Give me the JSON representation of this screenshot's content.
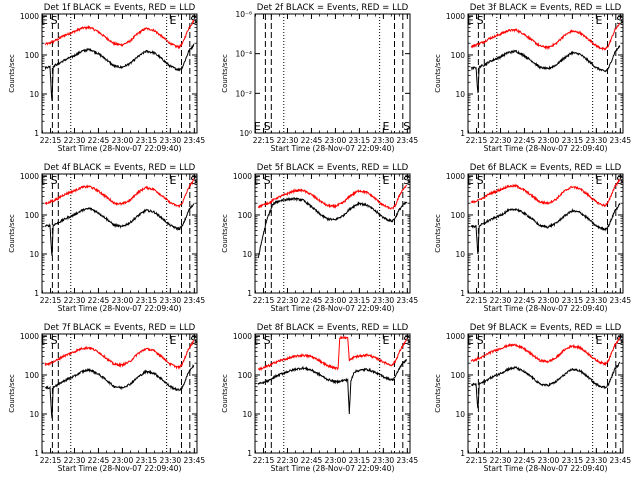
{
  "colors": {
    "events": "#000000",
    "lld": "#ff0000",
    "axis": "#000000",
    "background": "#ffffff"
  },
  "charts_common": {
    "ylabel": "Counts/sec",
    "xlabel": "Start Time (28-Nov-07 22:09:40)",
    "xticks": [
      "22:15",
      "22:30",
      "22:45",
      "23:00",
      "23:15",
      "23:30",
      "23:45"
    ],
    "yticks_log": [
      "1",
      "10",
      "100",
      "1000"
    ],
    "yticks_flat": [
      "10⁰",
      "10⁻²",
      "10⁻⁴",
      "10⁻⁶"
    ],
    "xlim_minutes": [
      0,
      97
    ],
    "ylim_log10": [
      0,
      3.05
    ],
    "ylim_flat": [
      0,
      1
    ],
    "marker_lines": [
      {
        "minute": 6.5,
        "style": "dashed"
      },
      {
        "minute": 10.2,
        "style": "dashed"
      },
      {
        "minute": 18.0,
        "style": "dotted"
      },
      {
        "minute": 78.0,
        "style": "dotted"
      },
      {
        "minute": 87.3,
        "style": "dashed"
      },
      {
        "minute": 92.5,
        "style": "dashed"
      }
    ]
  },
  "chart_data": [
    {
      "type": "line",
      "title": "Det 1f BLACK = Events, RED = LLD",
      "scale": "log",
      "x": [
        2,
        5,
        6.2,
        7,
        8,
        10,
        11,
        13,
        16,
        20,
        25,
        30,
        35,
        40,
        45,
        50,
        55,
        60,
        65,
        70,
        75,
        80,
        84,
        86,
        88,
        90,
        92,
        94,
        95
      ],
      "series": [
        {
          "name": "LLD",
          "values": [
            190,
            200,
            225,
            215,
            235,
            250,
            270,
            305,
            340,
            395,
            490,
            510,
            400,
            280,
            195,
            180,
            225,
            360,
            480,
            430,
            300,
            200,
            165,
            160,
            200,
            320,
            500,
            650,
            780
          ]
        },
        {
          "name": "Events",
          "values": [
            48,
            50,
            6,
            50,
            55,
            58,
            62,
            70,
            80,
            95,
            125,
            140,
            110,
            78,
            52,
            48,
            60,
            90,
            125,
            115,
            80,
            52,
            44,
            42,
            50,
            80,
            130,
            160,
            185
          ]
        }
      ],
      "edge_labels": [
        {
          "text": "E",
          "minute": 1.5
        },
        {
          "text": "S",
          "minute": 7.6
        },
        {
          "text": "E",
          "minute": 82
        },
        {
          "text": "S",
          "minute": 95
        }
      ]
    },
    {
      "type": "line",
      "title": "Det 2f BLACK = Events, RED = LLD",
      "scale": "flat",
      "x": [],
      "series": [],
      "edge_labels": [
        {
          "text": "E",
          "minute": 1.5
        },
        {
          "text": "S",
          "minute": 7.6
        },
        {
          "text": "E",
          "minute": 82
        },
        {
          "text": "S",
          "minute": 95
        }
      ]
    },
    {
      "type": "line",
      "title": "Det 3f BLACK = Events, RED = LLD",
      "scale": "log",
      "x": [
        2,
        5,
        6.2,
        7,
        8,
        10,
        11,
        13,
        16,
        20,
        25,
        30,
        35,
        40,
        45,
        50,
        55,
        60,
        65,
        70,
        75,
        80,
        84,
        86,
        88,
        90,
        92,
        94,
        95
      ],
      "series": [
        {
          "name": "LLD",
          "values": [
            165,
            180,
            195,
            190,
            205,
            215,
            230,
            260,
            290,
            340,
            420,
            440,
            345,
            240,
            170,
            155,
            195,
            310,
            410,
            370,
            260,
            175,
            145,
            140,
            175,
            280,
            440,
            560,
            680
          ]
        },
        {
          "name": "Events",
          "values": [
            45,
            48,
            10,
            48,
            52,
            55,
            58,
            66,
            75,
            88,
            115,
            125,
            98,
            70,
            48,
            44,
            55,
            82,
            115,
            105,
            73,
            48,
            40,
            38,
            46,
            74,
            120,
            150,
            170
          ]
        }
      ],
      "edge_labels": [
        {
          "text": "E",
          "minute": 1.5
        },
        {
          "text": "S",
          "minute": 7.6
        },
        {
          "text": "E",
          "minute": 82
        },
        {
          "text": "S",
          "minute": 95
        }
      ]
    },
    {
      "type": "line",
      "title": "Det 4f BLACK = Events, RED = LLD",
      "scale": "log",
      "x": [
        2,
        5,
        6.2,
        7,
        8,
        10,
        11,
        13,
        16,
        20,
        25,
        30,
        35,
        40,
        45,
        50,
        55,
        60,
        65,
        70,
        75,
        80,
        84,
        86,
        88,
        90,
        92,
        94,
        95
      ],
      "series": [
        {
          "name": "LLD",
          "values": [
            200,
            210,
            235,
            225,
            245,
            260,
            285,
            320,
            360,
            415,
            515,
            535,
            420,
            295,
            205,
            190,
            235,
            380,
            505,
            455,
            315,
            210,
            175,
            168,
            210,
            335,
            525,
            680,
            820
          ]
        },
        {
          "name": "Events",
          "values": [
            52,
            54,
            8,
            54,
            58,
            62,
            66,
            74,
            85,
            100,
            132,
            148,
            116,
            82,
            55,
            50,
            63,
            95,
            132,
            120,
            84,
            55,
            46,
            44,
            53,
            84,
            136,
            168,
            195
          ]
        }
      ],
      "edge_labels": [
        {
          "text": "E",
          "minute": 1.5
        },
        {
          "text": "S",
          "minute": 7.6
        },
        {
          "text": "E",
          "minute": 82
        },
        {
          "text": "S",
          "minute": 95
        }
      ]
    },
    {
      "type": "line",
      "title": "Det 5f BLACK = Events, RED = LLD",
      "scale": "log",
      "x": [
        2,
        5,
        8,
        10,
        11,
        13,
        16,
        20,
        25,
        30,
        35,
        40,
        45,
        50,
        55,
        60,
        65,
        70,
        75,
        80,
        84,
        86,
        88,
        90,
        92,
        94,
        95
      ],
      "series": [
        {
          "name": "LLD",
          "values": [
            165,
            180,
            200,
            215,
            235,
            265,
            300,
            350,
            420,
            430,
            340,
            240,
            175,
            165,
            205,
            320,
            420,
            380,
            270,
            180,
            150,
            145,
            180,
            290,
            420,
            520,
            560
          ]
        },
        {
          "name": "Events",
          "values": [
            8,
            30,
            90,
            140,
            180,
            210,
            235,
            250,
            260,
            240,
            170,
            110,
            80,
            75,
            95,
            150,
            200,
            180,
            130,
            88,
            72,
            70,
            88,
            130,
            170,
            200,
            210
          ]
        }
      ],
      "edge_labels": [
        {
          "text": "E",
          "minute": 1.5
        },
        {
          "text": "S",
          "minute": 7.6
        },
        {
          "text": "E",
          "minute": 82
        },
        {
          "text": "S",
          "minute": 95
        }
      ]
    },
    {
      "type": "line",
      "title": "Det 6f BLACK = Events, RED = LLD",
      "scale": "log",
      "x": [
        2,
        5,
        6.2,
        7,
        8,
        10,
        11,
        13,
        16,
        20,
        25,
        30,
        35,
        40,
        45,
        50,
        55,
        60,
        65,
        70,
        75,
        80,
        84,
        86,
        88,
        90,
        92,
        94,
        95
      ],
      "series": [
        {
          "name": "LLD",
          "values": [
            210,
            225,
            250,
            240,
            260,
            275,
            300,
            340,
            380,
            440,
            540,
            560,
            440,
            310,
            215,
            200,
            250,
            400,
            530,
            475,
            330,
            220,
            180,
            175,
            220,
            350,
            550,
            700,
            850
          ]
        },
        {
          "name": "Events",
          "values": [
            50,
            52,
            9,
            52,
            56,
            60,
            64,
            72,
            82,
            97,
            128,
            142,
            112,
            80,
            53,
            49,
            61,
            92,
            128,
            117,
            82,
            53,
            45,
            43,
            52,
            82,
            132,
            162,
            190
          ]
        }
      ],
      "edge_labels": [
        {
          "text": "E",
          "minute": 1.5
        },
        {
          "text": "S",
          "minute": 7.6
        },
        {
          "text": "E",
          "minute": 82
        },
        {
          "text": "S",
          "minute": 95
        }
      ]
    },
    {
      "type": "line",
      "title": "Det 7f BLACK = Events, RED = LLD",
      "scale": "log",
      "x": [
        2,
        5,
        6.2,
        7,
        8,
        10,
        11,
        13,
        16,
        20,
        25,
        30,
        35,
        40,
        45,
        50,
        55,
        60,
        65,
        70,
        75,
        80,
        84,
        86,
        88,
        90,
        92,
        94,
        95
      ],
      "series": [
        {
          "name": "LLD",
          "values": [
            185,
            195,
            220,
            210,
            230,
            245,
            265,
            300,
            335,
            390,
            480,
            500,
            395,
            275,
            190,
            178,
            220,
            355,
            470,
            420,
            295,
            195,
            162,
            158,
            196,
            315,
            490,
            640,
            760
          ]
        },
        {
          "name": "Events",
          "values": [
            46,
            48,
            7,
            48,
            53,
            56,
            60,
            68,
            78,
            92,
            122,
            136,
            107,
            76,
            51,
            47,
            58,
            88,
            122,
            112,
            78,
            51,
            43,
            41,
            49,
            78,
            126,
            156,
            180
          ]
        }
      ],
      "edge_labels": [
        {
          "text": "E",
          "minute": 1.5
        },
        {
          "text": "S",
          "minute": 7.6
        },
        {
          "text": "E",
          "minute": 82
        },
        {
          "text": "S",
          "minute": 95
        }
      ]
    },
    {
      "type": "line",
      "title": "Det 8f BLACK = Events, RED = LLD",
      "scale": "log",
      "x": [
        2,
        5,
        8,
        10,
        11,
        13,
        16,
        20,
        25,
        30,
        35,
        40,
        45,
        50,
        52,
        53,
        55,
        58,
        59,
        60,
        62,
        65,
        70,
        75,
        80,
        84,
        86,
        88,
        90,
        92,
        94,
        95
      ],
      "series": [
        {
          "name": "LLD",
          "values": [
            140,
            150,
            170,
            180,
            195,
            215,
            235,
            260,
            300,
            320,
            300,
            240,
            175,
            150,
            148,
            900,
            900,
            900,
            240,
            250,
            290,
            300,
            330,
            280,
            220,
            185,
            180,
            230,
            360,
            520,
            700,
            820
          ]
        },
        {
          "name": "Events",
          "values": [
            60,
            62,
            70,
            75,
            82,
            92,
            105,
            120,
            140,
            150,
            135,
            105,
            78,
            68,
            66,
            70,
            72,
            75,
            10,
            70,
            120,
            130,
            140,
            118,
            92,
            78,
            75,
            92,
            140,
            190,
            230,
            250
          ]
        }
      ],
      "edge_labels": [
        {
          "text": "E",
          "minute": 1.5
        },
        {
          "text": "S",
          "minute": 7.6
        },
        {
          "text": "E",
          "minute": 82
        },
        {
          "text": "S",
          "minute": 95
        }
      ]
    },
    {
      "type": "line",
      "title": "Det 9f BLACK = Events, RED = LLD",
      "scale": "log",
      "x": [
        2,
        5,
        6.2,
        7,
        8,
        10,
        11,
        13,
        16,
        20,
        25,
        30,
        35,
        40,
        45,
        50,
        55,
        60,
        65,
        70,
        75,
        80,
        84,
        86,
        88,
        90,
        92,
        94,
        95
      ],
      "series": [
        {
          "name": "LLD",
          "values": [
            230,
            245,
            270,
            260,
            280,
            300,
            325,
            365,
            410,
            470,
            570,
            590,
            470,
            335,
            235,
            220,
            270,
            430,
            560,
            505,
            355,
            240,
            200,
            195,
            240,
            380,
            590,
            760,
            900
          ]
        },
        {
          "name": "Events",
          "values": [
            56,
            58,
            12,
            58,
            62,
            66,
            70,
            80,
            92,
            108,
            140,
            155,
            122,
            88,
            58,
            54,
            67,
            100,
            140,
            128,
            90,
            58,
            50,
            48,
            58,
            92,
            145,
            178,
            205
          ]
        }
      ],
      "edge_labels": [
        {
          "text": "E",
          "minute": 1.5
        },
        {
          "text": "S",
          "minute": 7.6
        },
        {
          "text": "E",
          "minute": 82
        },
        {
          "text": "S",
          "minute": 95
        }
      ]
    }
  ]
}
